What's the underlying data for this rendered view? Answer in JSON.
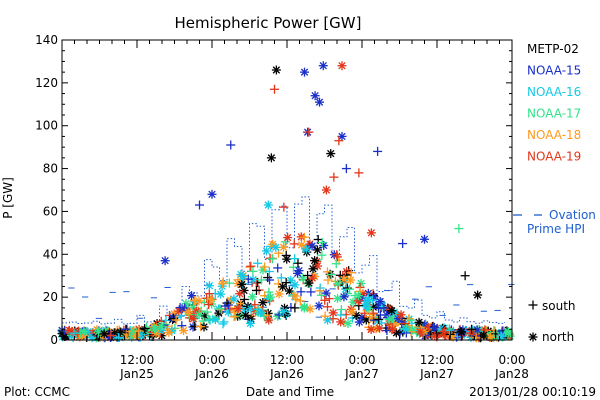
{
  "chart_data": {
    "type": "scatter",
    "title": "Hemispheric Power [GW]",
    "ylabel": "P [GW]",
    "xlabel": "Date and Time",
    "ylim": [
      0,
      140
    ],
    "xlim_hours": [
      0,
      72
    ],
    "yticks": [
      "0",
      "20",
      "40",
      "60",
      "80",
      "100",
      "120",
      "140"
    ],
    "xticks": [
      {
        "time": "12:00",
        "date": "Jan25"
      },
      {
        "time": "0:00",
        "date": "Jan26"
      },
      {
        "time": "12:00",
        "date": "Jan26"
      },
      {
        "time": "0:00",
        "date": "Jan27"
      },
      {
        "time": "12:00",
        "date": "Jan27"
      },
      {
        "time": "0:00",
        "date": "Jan28"
      }
    ],
    "series": [
      {
        "name": "METP-02",
        "color": "#000000"
      },
      {
        "name": "NOAA-15",
        "color": "#1a2fc8"
      },
      {
        "name": "NOAA-16",
        "color": "#15c9e6"
      },
      {
        "name": "NOAA-17",
        "color": "#33e38a"
      },
      {
        "name": "NOAA-18",
        "color": "#ff9a1e"
      },
      {
        "name": "NOAA-19",
        "color": "#e3361a"
      }
    ],
    "ovation": {
      "name_line1": "Ovation",
      "name_line2": "Prime HPI",
      "color": "#1f5fd0"
    },
    "marker_legend": {
      "south_label": "south",
      "north_label": "north"
    },
    "highlights": [
      {
        "series": "METP-02",
        "x": 34.3,
        "y": 126,
        "marker": "north"
      },
      {
        "series": "NOAA-15",
        "x": 38.8,
        "y": 125,
        "marker": "north"
      },
      {
        "series": "NOAA-15",
        "x": 41.8,
        "y": 128,
        "marker": "north"
      },
      {
        "series": "NOAA-19",
        "x": 44.8,
        "y": 128,
        "marker": "north"
      },
      {
        "series": "NOAA-19",
        "x": 34.0,
        "y": 117,
        "marker": "south"
      },
      {
        "series": "NOAA-15",
        "x": 40.5,
        "y": 114,
        "marker": "north"
      },
      {
        "series": "NOAA-15",
        "x": 41.2,
        "y": 111,
        "marker": "north"
      },
      {
        "series": "NOAA-15",
        "x": 39.3,
        "y": 97,
        "marker": "north"
      },
      {
        "series": "NOAA-19",
        "x": 39.5,
        "y": 97,
        "marker": "south"
      },
      {
        "series": "NOAA-15",
        "x": 44.8,
        "y": 95,
        "marker": "north"
      },
      {
        "series": "NOAA-19",
        "x": 44.3,
        "y": 93,
        "marker": "south"
      },
      {
        "series": "NOAA-15",
        "x": 27.0,
        "y": 91,
        "marker": "south"
      },
      {
        "series": "NOAA-15",
        "x": 50.5,
        "y": 88,
        "marker": "south"
      },
      {
        "series": "METP-02",
        "x": 43.0,
        "y": 87,
        "marker": "north"
      },
      {
        "series": "METP-02",
        "x": 33.5,
        "y": 85,
        "marker": "north"
      },
      {
        "series": "NOAA-15",
        "x": 45.5,
        "y": 80,
        "marker": "south"
      },
      {
        "series": "NOAA-19",
        "x": 47.5,
        "y": 78,
        "marker": "south"
      },
      {
        "series": "NOAA-19",
        "x": 43.5,
        "y": 76,
        "marker": "south"
      },
      {
        "series": "NOAA-19",
        "x": 42.3,
        "y": 70,
        "marker": "north"
      },
      {
        "series": "NOAA-15",
        "x": 24.0,
        "y": 68,
        "marker": "north"
      },
      {
        "series": "NOAA-16",
        "x": 33.0,
        "y": 63,
        "marker": "north"
      },
      {
        "series": "NOAA-15",
        "x": 22.0,
        "y": 63,
        "marker": "south"
      },
      {
        "series": "NOAA-19",
        "x": 35.5,
        "y": 62,
        "marker": "south"
      },
      {
        "series": "NOAA-17",
        "x": 63.5,
        "y": 52,
        "marker": "south"
      },
      {
        "series": "NOAA-15",
        "x": 54.5,
        "y": 45,
        "marker": "south"
      },
      {
        "series": "NOAA-15",
        "x": 58.0,
        "y": 47,
        "marker": "north"
      },
      {
        "series": "NOAA-19",
        "x": 49.5,
        "y": 50,
        "marker": "north"
      },
      {
        "series": "NOAA-15",
        "x": 16.5,
        "y": 37,
        "marker": "north"
      },
      {
        "series": "METP-02",
        "x": 64.5,
        "y": 30,
        "marker": "south"
      },
      {
        "series": "METP-02",
        "x": 66.5,
        "y": 21,
        "marker": "north"
      }
    ]
  }
}
